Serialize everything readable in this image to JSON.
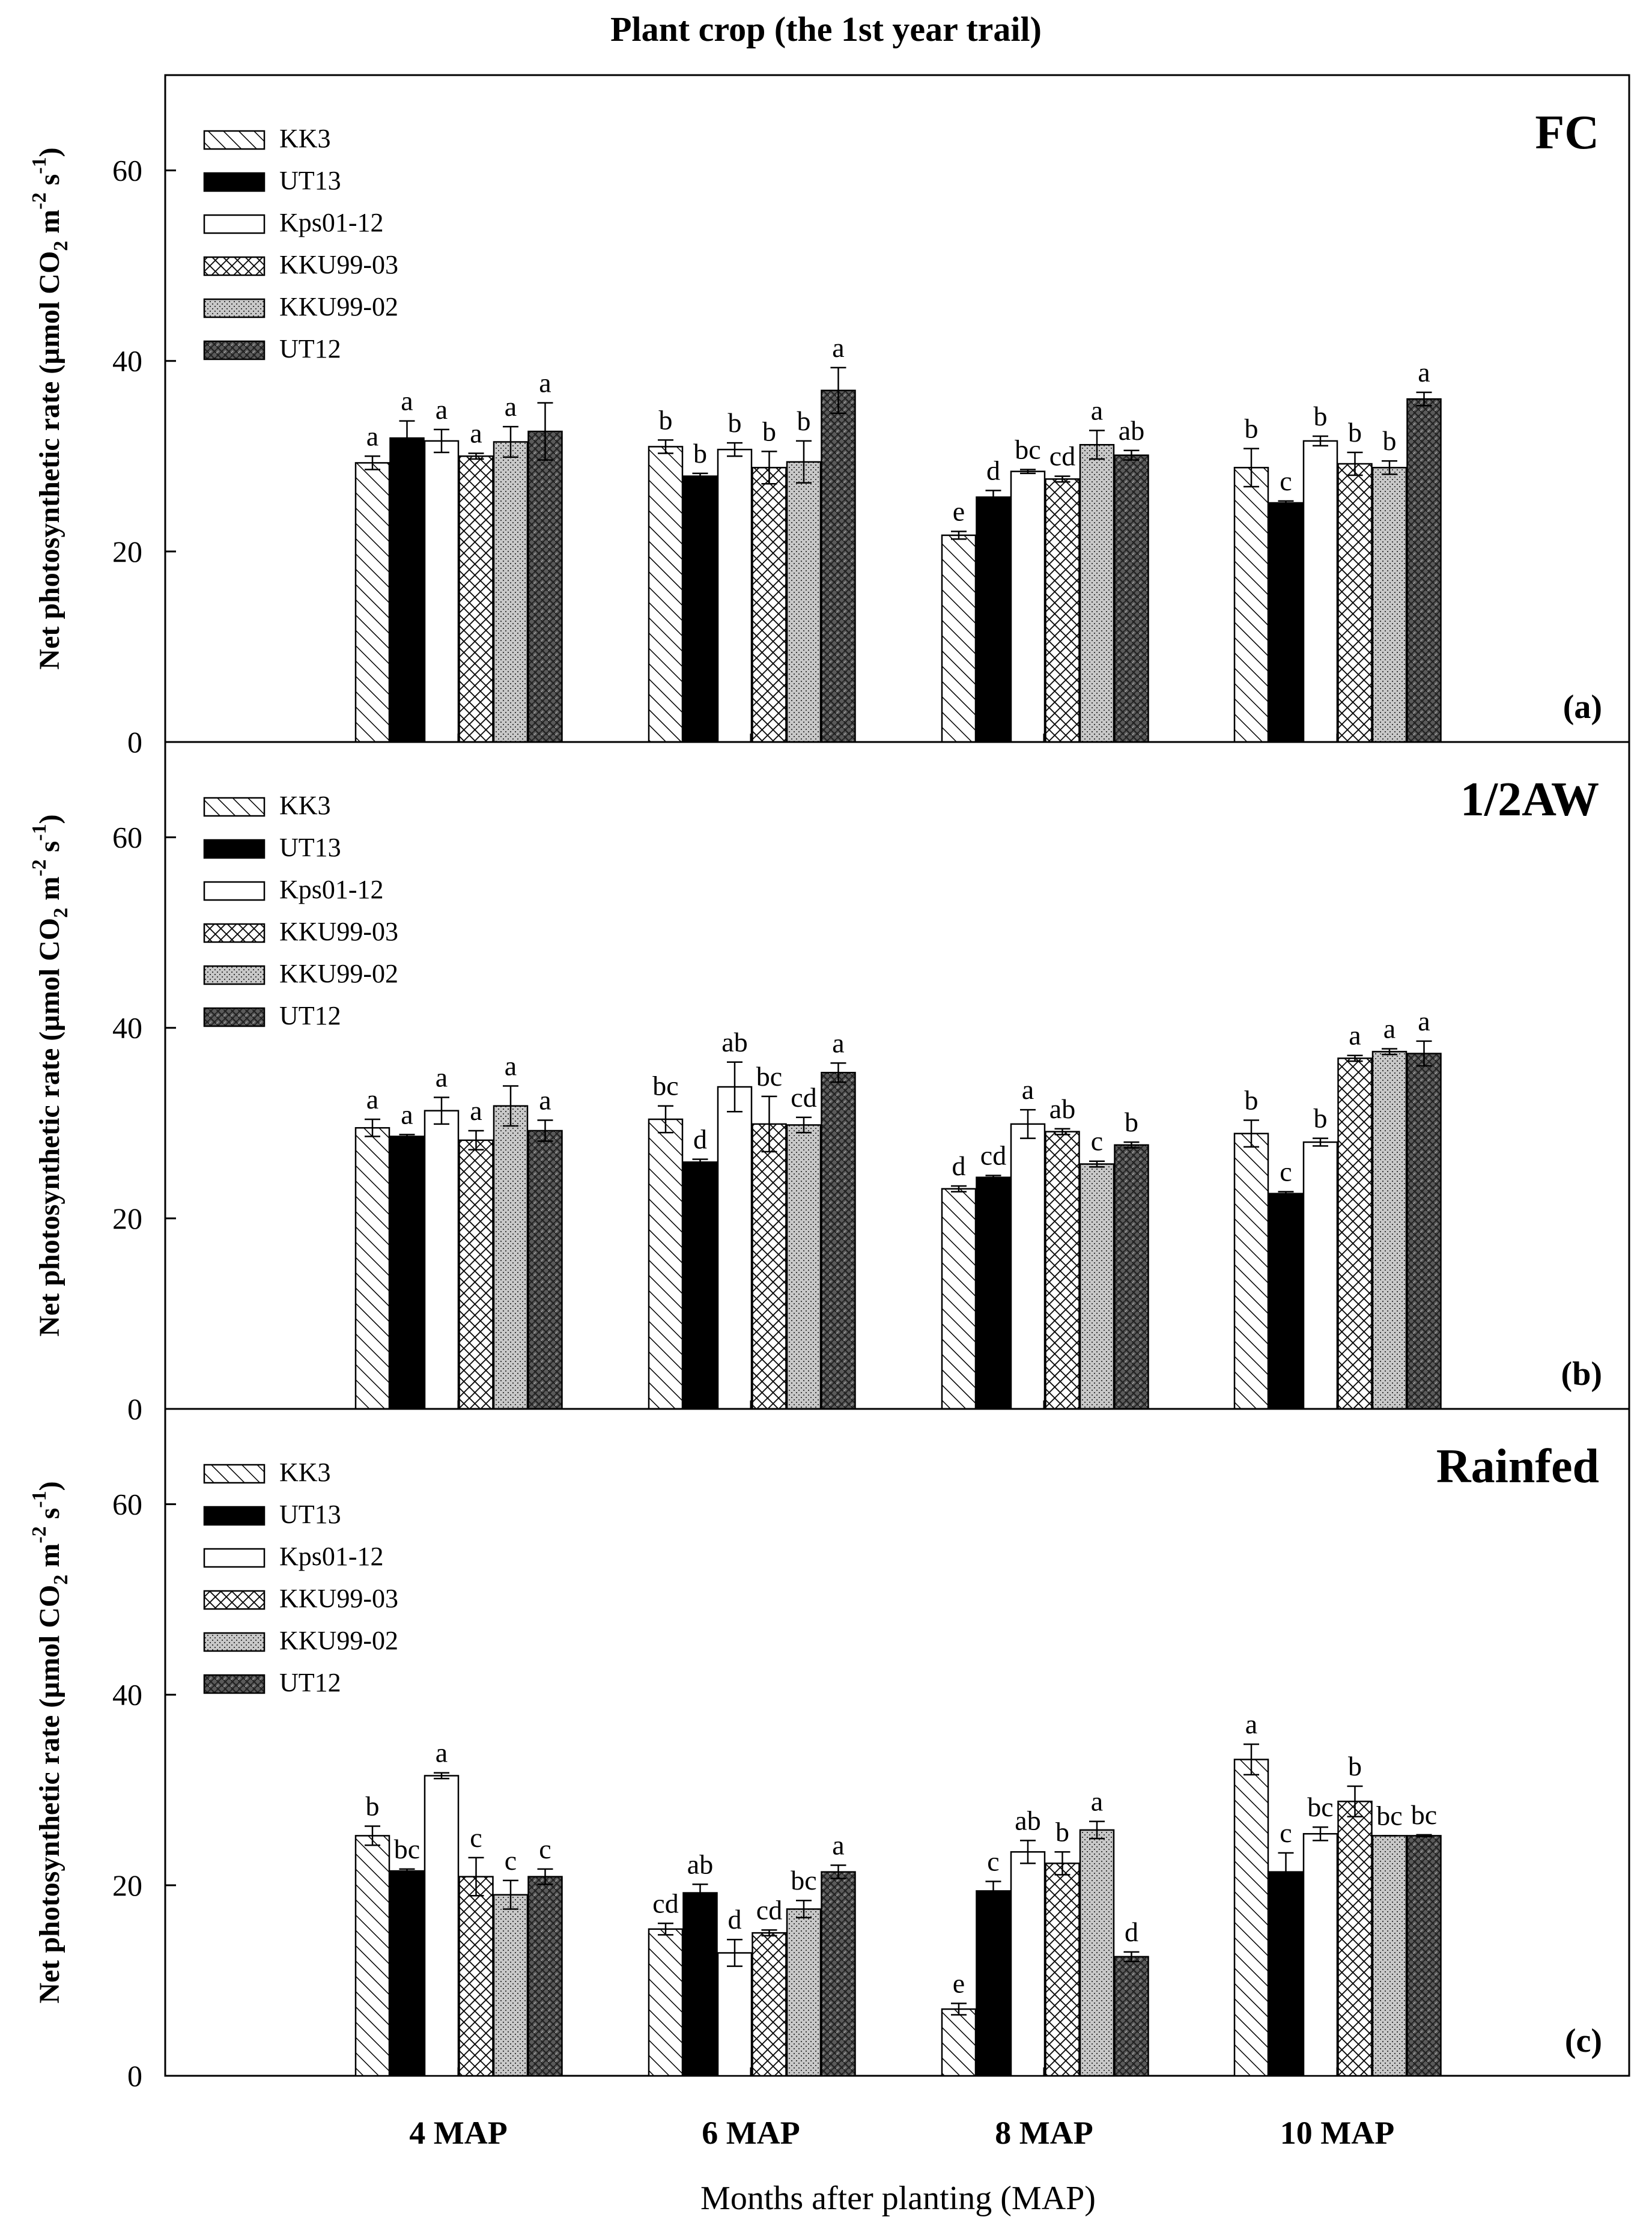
{
  "figure": {
    "title": "Plant crop (the 1st year trail)",
    "xlabel": "Months after planting (MAP)"
  },
  "legend_items": [
    {
      "name": "KK3",
      "pattern": "diagonal-hatch"
    },
    {
      "name": "UT13",
      "pattern": "solid-black"
    },
    {
      "name": "Kps01-12",
      "pattern": "solid-white"
    },
    {
      "name": "KKU99-03",
      "pattern": "crosshatch"
    },
    {
      "name": "KKU99-02",
      "pattern": "dotted-gray"
    },
    {
      "name": "UT12",
      "pattern": "dark-weave"
    }
  ],
  "colors": {
    "black": "#000000",
    "white": "#ffffff",
    "gray": "#c8c8c8",
    "dark": "#505050"
  },
  "chart_data": [
    {
      "type": "bar",
      "title": "FC",
      "panel_label": "(a)",
      "ylabel_main": "Net photosynthetic rate (µmol CO",
      "ylabel_sub": "2",
      "ylabel_unit": " m",
      "ylabel_sup1": "-2",
      "ylabel_s": " s",
      "ylabel_sup2": "-1",
      "ylabel_close": ")",
      "ylim": [
        0,
        70
      ],
      "yticks": [
        "0",
        "20",
        "40",
        "60"
      ],
      "categories": [
        "4 MAP",
        "6 MAP",
        "8 MAP",
        "10 MAP"
      ],
      "series": [
        {
          "name": "KK3",
          "values": [
            29.3,
            31.0,
            21.7,
            28.8
          ],
          "errors": [
            0.7,
            0.7,
            0.4,
            2.0
          ],
          "letters": [
            "a",
            "b",
            "e",
            "b"
          ]
        },
        {
          "name": "UT13",
          "values": [
            31.9,
            27.9,
            25.7,
            25.1
          ],
          "errors": [
            1.8,
            0.3,
            0.7,
            0.2
          ],
          "letters": [
            "a",
            "b",
            "d",
            "c"
          ]
        },
        {
          "name": "Kps01-12",
          "values": [
            31.6,
            30.7,
            28.4,
            31.6
          ],
          "errors": [
            1.2,
            0.7,
            0.2,
            0.5
          ],
          "letters": [
            "a",
            "b",
            "bc",
            "b"
          ]
        },
        {
          "name": "KKU99-03",
          "values": [
            30.0,
            28.8,
            27.6,
            29.2
          ],
          "errors": [
            0.3,
            1.7,
            0.3,
            1.2
          ],
          "letters": [
            "a",
            "b",
            "cd",
            "b"
          ]
        },
        {
          "name": "KKU99-02",
          "values": [
            31.5,
            29.4,
            31.2,
            28.8
          ],
          "errors": [
            1.6,
            2.2,
            1.5,
            0.7
          ],
          "letters": [
            "a",
            "b",
            "a",
            "b"
          ]
        },
        {
          "name": "UT12",
          "values": [
            32.6,
            36.9,
            30.1,
            36.0
          ],
          "errors": [
            3.0,
            2.4,
            0.5,
            0.7
          ],
          "letters": [
            "a",
            "a",
            "ab",
            "a"
          ]
        }
      ]
    },
    {
      "type": "bar",
      "title": "1/2AW",
      "panel_label": "(b)",
      "ylabel_main": "Net photosynthetic rate (µmol CO",
      "ylabel_sub": "2",
      "ylabel_unit": " m",
      "ylabel_sup1": "-2",
      "ylabel_s": " s",
      "ylabel_sup2": "-1",
      "ylabel_close": ")",
      "ylim": [
        0,
        70
      ],
      "yticks": [
        "0",
        "20",
        "40",
        "60"
      ],
      "categories": [
        "4 MAP",
        "6 MAP",
        "8 MAP",
        "10 MAP"
      ],
      "series": [
        {
          "name": "KK3",
          "values": [
            29.5,
            30.4,
            23.1,
            28.9
          ],
          "errors": [
            0.9,
            1.4,
            0.3,
            1.4
          ],
          "letters": [
            "a",
            "bc",
            "d",
            "b"
          ]
        },
        {
          "name": "UT13",
          "values": [
            28.6,
            25.9,
            24.3,
            22.6
          ],
          "errors": [
            0.2,
            0.3,
            0.2,
            0.2
          ],
          "letters": [
            "a",
            "d",
            "cd",
            "c"
          ]
        },
        {
          "name": "Kps01-12",
          "values": [
            31.3,
            33.8,
            29.9,
            28.0
          ],
          "errors": [
            1.4,
            2.6,
            1.5,
            0.4
          ],
          "letters": [
            "a",
            "ab",
            "a",
            "b"
          ]
        },
        {
          "name": "KKU99-03",
          "values": [
            28.2,
            29.9,
            29.1,
            36.8
          ],
          "errors": [
            1.0,
            2.9,
            0.3,
            0.3
          ],
          "letters": [
            "a",
            "bc",
            "ab",
            "a"
          ]
        },
        {
          "name": "KKU99-02",
          "values": [
            31.8,
            29.8,
            25.7,
            37.5
          ],
          "errors": [
            2.1,
            0.8,
            0.3,
            0.3
          ],
          "letters": [
            "a",
            "cd",
            "c",
            "a"
          ]
        },
        {
          "name": "UT12",
          "values": [
            29.2,
            35.3,
            27.7,
            37.3
          ],
          "errors": [
            1.1,
            1.0,
            0.3,
            1.3
          ],
          "letters": [
            "a",
            "a",
            "b",
            "a"
          ]
        }
      ]
    },
    {
      "type": "bar",
      "title": "Rainfed",
      "panel_label": "(c)",
      "ylabel_main": "Net photosynthetic rate (µmol CO",
      "ylabel_sub": "2",
      "ylabel_unit": " m",
      "ylabel_sup1": "-2",
      "ylabel_s": " s",
      "ylabel_sup2": "-1",
      "ylabel_close": ")",
      "ylim": [
        0,
        70
      ],
      "yticks": [
        "0",
        "20",
        "40",
        "60"
      ],
      "categories": [
        "4 MAP",
        "6 MAP",
        "8 MAP",
        "10 MAP"
      ],
      "series": [
        {
          "name": "KK3",
          "values": [
            25.2,
            15.4,
            7.0,
            33.2
          ],
          "errors": [
            1.0,
            0.6,
            0.6,
            1.6
          ],
          "letters": [
            "b",
            "cd",
            "e",
            "a"
          ]
        },
        {
          "name": "UT13",
          "values": [
            21.5,
            19.2,
            19.4,
            21.4
          ],
          "errors": [
            0.2,
            0.9,
            1.0,
            2.0
          ],
          "letters": [
            "bc",
            "ab",
            "c",
            "c"
          ]
        },
        {
          "name": "Kps01-12",
          "values": [
            31.5,
            12.9,
            23.5,
            25.4
          ],
          "errors": [
            0.3,
            1.4,
            1.2,
            0.7
          ],
          "letters": [
            "a",
            "d",
            "ab",
            "bc"
          ]
        },
        {
          "name": "KKU99-03",
          "values": [
            20.9,
            15.0,
            22.3,
            28.8
          ],
          "errors": [
            2.0,
            0.3,
            1.2,
            1.6
          ],
          "letters": [
            "c",
            "cd",
            "b",
            "b"
          ]
        },
        {
          "name": "KKU99-02",
          "values": [
            19.0,
            17.5,
            25.8,
            25.2
          ],
          "errors": [
            1.5,
            0.9,
            0.9,
            0.0
          ],
          "letters": [
            "c",
            "bc",
            "a",
            "bc"
          ]
        },
        {
          "name": "UT12",
          "values": [
            20.9,
            21.4,
            12.5,
            25.2
          ],
          "errors": [
            0.8,
            0.7,
            0.5,
            0.1
          ],
          "letters": [
            "c",
            "a",
            "d",
            "bc"
          ]
        }
      ]
    }
  ]
}
